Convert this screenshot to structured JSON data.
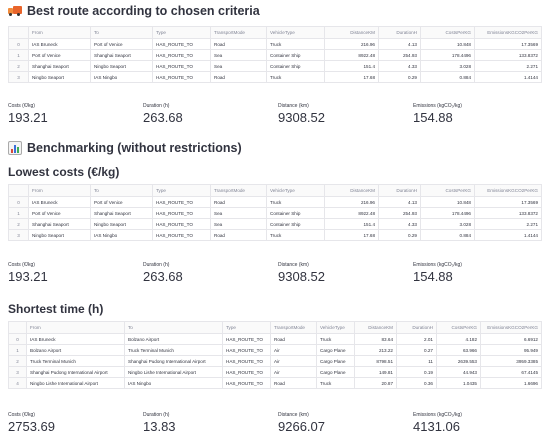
{
  "sections": {
    "best_route_title": "Best route according to chosen criteria",
    "benchmark_title": "Benchmarking (without restrictions)",
    "lowest_costs_title": "Lowest costs (€/kg)",
    "shortest_time_title": "Shortest time (h)"
  },
  "columns": {
    "from": "From",
    "to": "To",
    "type": "Type",
    "mode": "TransportMode",
    "vehicle": "VehicleType",
    "distance": "DistanceKM",
    "duration": "DurationH",
    "costs": "CostsPerKG",
    "emissions": "EmissionsKGCO2PerKG"
  },
  "best_route": {
    "rows": [
      {
        "idx": "0",
        "from": "IAS Bruneck",
        "to": "Port of Venice",
        "type": "HAS_ROUTE_TO",
        "mode": "Road",
        "vehicle": "Truck",
        "distance": "216.96",
        "duration": "4.13",
        "costs": "10.848",
        "emissions": "17.3569"
      },
      {
        "idx": "1",
        "from": "Port of Venice",
        "to": "Shanghai Seaport",
        "type": "HAS_ROUTE_TO",
        "mode": "Sea",
        "vehicle": "Container Ship",
        "distance": "8922.48",
        "duration": "254.93",
        "costs": "178.4496",
        "emissions": "133.8372"
      },
      {
        "idx": "2",
        "from": "Shanghai Seaport",
        "to": "Ningbo Seaport",
        "type": "HAS_ROUTE_TO",
        "mode": "Sea",
        "vehicle": "Container Ship",
        "distance": "151.4",
        "duration": "4.33",
        "costs": "3.028",
        "emissions": "2.271"
      },
      {
        "idx": "3",
        "from": "Ningbo Seaport",
        "to": "IAS Ningbo",
        "type": "HAS_ROUTE_TO",
        "mode": "Road",
        "vehicle": "Truck",
        "distance": "17.68",
        "duration": "0.29",
        "costs": "0.884",
        "emissions": "1.4144"
      }
    ],
    "metrics": {
      "costs_label": "Costs (€/kg)",
      "costs": "193.21",
      "duration_label": "Duration (h)",
      "duration": "263.68",
      "distance_label": "Distance (km)",
      "distance": "9308.52",
      "emissions_label": "Emissions (kgCO₂/kg)",
      "emissions": "154.88"
    }
  },
  "lowest_costs": {
    "rows": [
      {
        "idx": "0",
        "from": "IAS Bruneck",
        "to": "Port of Venice",
        "type": "HAS_ROUTE_TO",
        "mode": "Road",
        "vehicle": "Truck",
        "distance": "216.96",
        "duration": "4.13",
        "costs": "10.848",
        "emissions": "17.3569"
      },
      {
        "idx": "1",
        "from": "Port of Venice",
        "to": "Shanghai Seaport",
        "type": "HAS_ROUTE_TO",
        "mode": "Sea",
        "vehicle": "Container Ship",
        "distance": "8922.48",
        "duration": "254.93",
        "costs": "178.4496",
        "emissions": "133.8372"
      },
      {
        "idx": "2",
        "from": "Shanghai Seaport",
        "to": "Ningbo Seaport",
        "type": "HAS_ROUTE_TO",
        "mode": "Sea",
        "vehicle": "Container Ship",
        "distance": "151.4",
        "duration": "4.33",
        "costs": "3.028",
        "emissions": "2.271"
      },
      {
        "idx": "3",
        "from": "Ningbo Seaport",
        "to": "IAS Ningbo",
        "type": "HAS_ROUTE_TO",
        "mode": "Road",
        "vehicle": "Truck",
        "distance": "17.68",
        "duration": "0.29",
        "costs": "0.884",
        "emissions": "1.4144"
      }
    ],
    "metrics": {
      "costs_label": "Costs (€/kg)",
      "costs": "193.21",
      "duration_label": "Duration (h)",
      "duration": "263.68",
      "distance_label": "Distance (km)",
      "distance": "9308.52",
      "emissions_label": "Emissions (kgCO₂/kg)",
      "emissions": "154.88"
    }
  },
  "shortest_time": {
    "rows": [
      {
        "idx": "0",
        "from": "IAS Bruneck",
        "to": "Bolzano Airport",
        "type": "HAS_ROUTE_TO",
        "mode": "Road",
        "vehicle": "Truck",
        "distance": "83.64",
        "duration": "2.01",
        "costs": "4.182",
        "emissions": "6.6912"
      },
      {
        "idx": "1",
        "from": "Bolzano Airport",
        "to": "Truck Terminal Munich",
        "type": "HAS_ROUTE_TO",
        "mode": "Air",
        "vehicle": "Cargo Plane",
        "distance": "213.22",
        "duration": "0.27",
        "costs": "63.966",
        "emissions": "95.949"
      },
      {
        "idx": "2",
        "from": "Truck Terminal Munich",
        "to": "Shanghai Pudong International Airport",
        "type": "HAS_ROUTE_TO",
        "mode": "Air",
        "vehicle": "Cargo Plane",
        "distance": "8798.51",
        "duration": "11",
        "costs": "2639.553",
        "emissions": "3959.3385"
      },
      {
        "idx": "3",
        "from": "Shanghai Pudong International Airport",
        "to": "Ningbo Lishe International Airport",
        "type": "HAS_ROUTE_TO",
        "mode": "Air",
        "vehicle": "Cargo Plane",
        "distance": "149.81",
        "duration": "0.19",
        "costs": "44.943",
        "emissions": "67.4145"
      },
      {
        "idx": "4",
        "from": "Ningbo Lishe International Airport",
        "to": "IAS Ningbo",
        "type": "HAS_ROUTE_TO",
        "mode": "Road",
        "vehicle": "Truck",
        "distance": "20.87",
        "duration": "0.36",
        "costs": "1.0435",
        "emissions": "1.6696"
      }
    ],
    "metrics": {
      "costs_label": "Costs (€/kg)",
      "costs": "2753.69",
      "duration_label": "Duration (h)",
      "duration": "13.83",
      "distance_label": "Distance (km)",
      "distance": "9266.07",
      "emissions_label": "Emissions (kgCO₂/kg)",
      "emissions": "4131.06"
    }
  },
  "icons": {
    "best_route": "delivery-truck-icon",
    "benchmark": "bar-chart-icon"
  }
}
